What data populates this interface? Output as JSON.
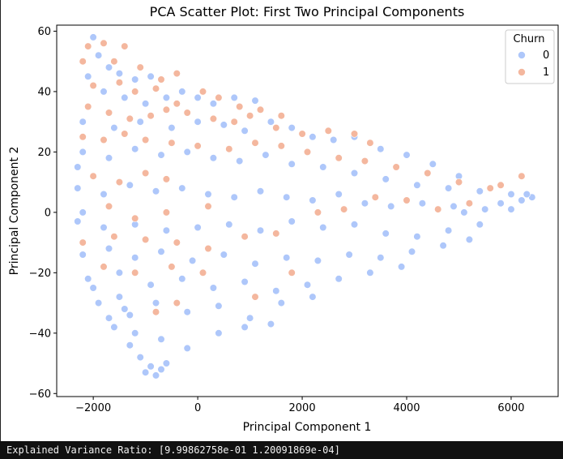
{
  "chart_data": {
    "type": "scatter",
    "title": "PCA Scatter Plot: First Two Principal Components",
    "xlabel": "Principal Component 1",
    "ylabel": "Principal Component 2",
    "xlim": [
      -2700,
      6900
    ],
    "ylim": [
      -61,
      62
    ],
    "xticks": [
      -2000,
      0,
      2000,
      4000,
      6000
    ],
    "xtick_labels": [
      "−2000",
      "0",
      "2000",
      "4000",
      "6000"
    ],
    "yticks": [
      -60,
      -40,
      -20,
      0,
      20,
      40,
      60
    ],
    "ytick_labels": [
      "−60",
      "−40",
      "−20",
      "0",
      "20",
      "40",
      "60"
    ],
    "grid": false,
    "legend": {
      "title": "Churn",
      "placement": "top-right"
    },
    "series": [
      {
        "name": "0",
        "color": "#aec7fa",
        "points": [
          [
            -2000,
            58
          ],
          [
            -1900,
            52
          ],
          [
            -1700,
            48
          ],
          [
            -1500,
            46
          ],
          [
            -2100,
            45
          ],
          [
            -1200,
            44
          ],
          [
            -900,
            45
          ],
          [
            -1800,
            40
          ],
          [
            -1400,
            38
          ],
          [
            -1000,
            36
          ],
          [
            -600,
            38
          ],
          [
            -300,
            40
          ],
          [
            0,
            38
          ],
          [
            300,
            36
          ],
          [
            700,
            38
          ],
          [
            1100,
            37
          ],
          [
            -2200,
            30
          ],
          [
            -1600,
            28
          ],
          [
            -1100,
            30
          ],
          [
            -500,
            28
          ],
          [
            0,
            30
          ],
          [
            500,
            29
          ],
          [
            900,
            27
          ],
          [
            1400,
            30
          ],
          [
            1800,
            28
          ],
          [
            2200,
            25
          ],
          [
            2600,
            24
          ],
          [
            3000,
            25
          ],
          [
            3500,
            21
          ],
          [
            4000,
            19
          ],
          [
            4500,
            16
          ],
          [
            5000,
            12
          ],
          [
            -2200,
            20
          ],
          [
            -1700,
            18
          ],
          [
            -1200,
            21
          ],
          [
            -700,
            19
          ],
          [
            -200,
            20
          ],
          [
            300,
            18
          ],
          [
            800,
            17
          ],
          [
            1300,
            19
          ],
          [
            1800,
            16
          ],
          [
            2400,
            15
          ],
          [
            3000,
            13
          ],
          [
            3600,
            11
          ],
          [
            4200,
            9
          ],
          [
            4800,
            8
          ],
          [
            5400,
            7
          ],
          [
            6000,
            6
          ],
          [
            6400,
            5
          ],
          [
            -2300,
            8
          ],
          [
            -1800,
            6
          ],
          [
            -1300,
            9
          ],
          [
            -800,
            7
          ],
          [
            -300,
            8
          ],
          [
            200,
            6
          ],
          [
            700,
            5
          ],
          [
            1200,
            7
          ],
          [
            1700,
            5
          ],
          [
            2200,
            4
          ],
          [
            2700,
            6
          ],
          [
            3200,
            3
          ],
          [
            3700,
            2
          ],
          [
            4300,
            3
          ],
          [
            4900,
            2
          ],
          [
            5500,
            1
          ],
          [
            6200,
            4
          ],
          [
            -2300,
            -3
          ],
          [
            -1800,
            -5
          ],
          [
            -1200,
            -4
          ],
          [
            -600,
            -6
          ],
          [
            0,
            -5
          ],
          [
            600,
            -4
          ],
          [
            1200,
            -6
          ],
          [
            1800,
            -3
          ],
          [
            2400,
            -5
          ],
          [
            3000,
            -4
          ],
          [
            3600,
            -7
          ],
          [
            4200,
            -8
          ],
          [
            4800,
            -6
          ],
          [
            5400,
            -4
          ],
          [
            6000,
            1
          ],
          [
            -2200,
            -14
          ],
          [
            -1700,
            -12
          ],
          [
            -1200,
            -15
          ],
          [
            -700,
            -13
          ],
          [
            -100,
            -16
          ],
          [
            500,
            -14
          ],
          [
            1100,
            -17
          ],
          [
            1700,
            -15
          ],
          [
            2300,
            -16
          ],
          [
            2900,
            -14
          ],
          [
            3500,
            -15
          ],
          [
            4100,
            -13
          ],
          [
            4700,
            -11
          ],
          [
            5200,
            -9
          ],
          [
            -2100,
            -22
          ],
          [
            -1500,
            -20
          ],
          [
            -900,
            -24
          ],
          [
            -300,
            -22
          ],
          [
            300,
            -25
          ],
          [
            900,
            -23
          ],
          [
            1500,
            -26
          ],
          [
            2100,
            -24
          ],
          [
            2700,
            -22
          ],
          [
            3300,
            -20
          ],
          [
            3900,
            -18
          ],
          [
            -1900,
            -30
          ],
          [
            -1400,
            -32
          ],
          [
            -800,
            -30
          ],
          [
            -200,
            -33
          ],
          [
            400,
            -31
          ],
          [
            1000,
            -35
          ],
          [
            1600,
            -30
          ],
          [
            2200,
            -28
          ],
          [
            -1600,
            -38
          ],
          [
            -1200,
            -40
          ],
          [
            -700,
            -42
          ],
          [
            -200,
            -45
          ],
          [
            400,
            -40
          ],
          [
            900,
            -38
          ],
          [
            1400,
            -37
          ],
          [
            -1300,
            -44
          ],
          [
            -1100,
            -48
          ],
          [
            -900,
            -51
          ],
          [
            -800,
            -54
          ],
          [
            -1000,
            -53
          ],
          [
            -700,
            -52
          ],
          [
            -600,
            -50
          ],
          [
            -1700,
            -35
          ],
          [
            -2000,
            -25
          ],
          [
            -1500,
            -28
          ],
          [
            -1300,
            -34
          ],
          [
            -2300,
            15
          ],
          [
            -2200,
            0
          ],
          [
            5800,
            3
          ],
          [
            6300,
            6
          ],
          [
            5100,
            0
          ]
        ]
      },
      {
        "name": "1",
        "color": "#f4b79e",
        "points": [
          [
            -2100,
            55
          ],
          [
            -1800,
            56
          ],
          [
            -1400,
            55
          ],
          [
            -1100,
            48
          ],
          [
            -700,
            44
          ],
          [
            -400,
            46
          ],
          [
            -2200,
            50
          ],
          [
            -1600,
            50
          ],
          [
            -2000,
            42
          ],
          [
            -1500,
            43
          ],
          [
            -1200,
            40
          ],
          [
            -800,
            41
          ],
          [
            -400,
            36
          ],
          [
            100,
            40
          ],
          [
            400,
            38
          ],
          [
            800,
            35
          ],
          [
            1200,
            34
          ],
          [
            1600,
            32
          ],
          [
            -2100,
            35
          ],
          [
            -1700,
            33
          ],
          [
            -1300,
            31
          ],
          [
            -900,
            32
          ],
          [
            -600,
            34
          ],
          [
            -200,
            33
          ],
          [
            300,
            31
          ],
          [
            700,
            30
          ],
          [
            1000,
            32
          ],
          [
            1500,
            28
          ],
          [
            2000,
            26
          ],
          [
            2500,
            27
          ],
          [
            3000,
            26
          ],
          [
            3300,
            23
          ],
          [
            -2200,
            25
          ],
          [
            -1800,
            24
          ],
          [
            -1400,
            26
          ],
          [
            -1000,
            24
          ],
          [
            -500,
            23
          ],
          [
            0,
            22
          ],
          [
            600,
            21
          ],
          [
            1100,
            23
          ],
          [
            1600,
            22
          ],
          [
            2100,
            20
          ],
          [
            2700,
            18
          ],
          [
            3200,
            17
          ],
          [
            3800,
            15
          ],
          [
            4400,
            13
          ],
          [
            5000,
            10
          ],
          [
            5600,
            8
          ],
          [
            -2000,
            12
          ],
          [
            -1500,
            10
          ],
          [
            -1000,
            13
          ],
          [
            -600,
            11
          ],
          [
            -1700,
            2
          ],
          [
            -1200,
            -2
          ],
          [
            -600,
            0
          ],
          [
            200,
            2
          ],
          [
            -2200,
            -10
          ],
          [
            -1600,
            -8
          ],
          [
            -1000,
            -9
          ],
          [
            -400,
            -10
          ],
          [
            200,
            -12
          ],
          [
            900,
            -8
          ],
          [
            1500,
            -7
          ],
          [
            2300,
            0
          ],
          [
            2800,
            1
          ],
          [
            3400,
            5
          ],
          [
            4000,
            4
          ],
          [
            4600,
            1
          ],
          [
            5200,
            3
          ],
          [
            5800,
            9
          ],
          [
            6200,
            12
          ],
          [
            -1800,
            -18
          ],
          [
            -1200,
            -20
          ],
          [
            -500,
            -18
          ],
          [
            100,
            -20
          ],
          [
            1800,
            -20
          ],
          [
            -800,
            -33
          ],
          [
            -400,
            -30
          ],
          [
            1100,
            -28
          ]
        ]
      }
    ]
  },
  "console": {
    "text": "Explained Variance Ratio: [9.99862758e-01 1.20091869e-04]"
  }
}
